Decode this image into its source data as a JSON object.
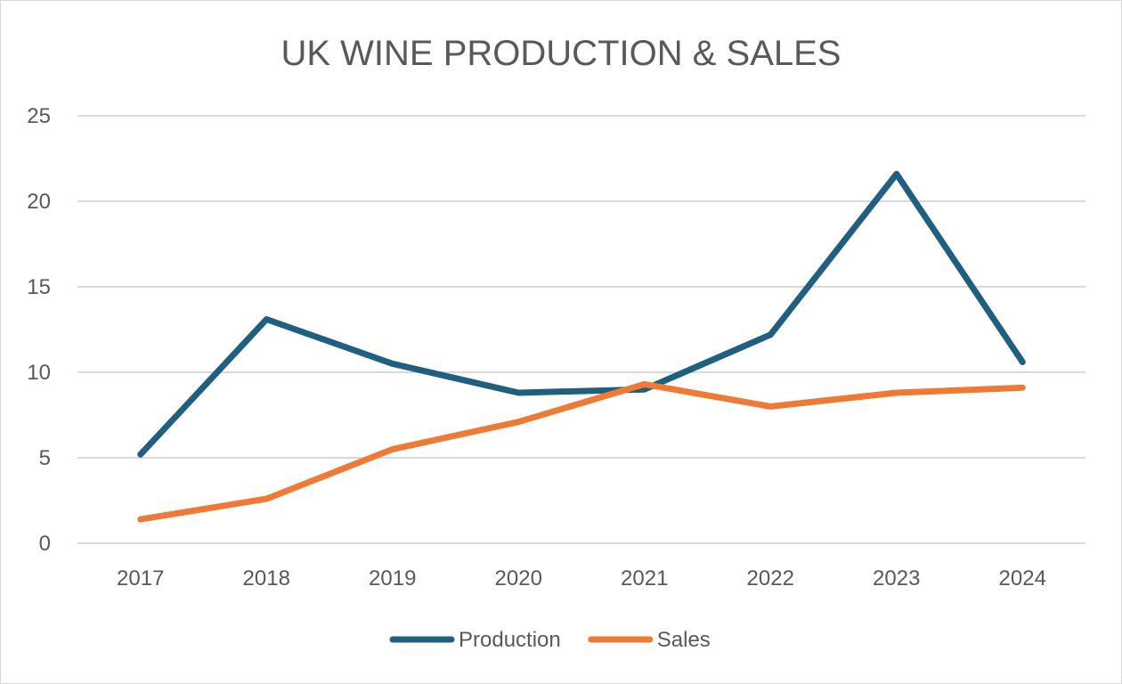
{
  "chart_data": {
    "type": "line",
    "title": "UK WINE PRODUCTION & SALES",
    "xlabel": "",
    "ylabel": "",
    "categories": [
      "2017",
      "2018",
      "2019",
      "2020",
      "2021",
      "2022",
      "2023",
      "2024"
    ],
    "series": [
      {
        "name": "Production",
        "color": "#1f5f7f",
        "values": [
          5.2,
          13.1,
          10.5,
          8.8,
          9.0,
          12.2,
          21.6,
          10.6
        ]
      },
      {
        "name": "Sales",
        "color": "#ef7a35",
        "values": [
          1.4,
          2.6,
          5.5,
          7.1,
          9.3,
          8.0,
          8.8,
          9.1
        ]
      }
    ],
    "ylim": [
      0,
      25
    ],
    "yticks": [
      "0",
      "5",
      "10",
      "15",
      "20",
      "25"
    ],
    "grid": "horizontal",
    "legend_position": "bottom"
  }
}
